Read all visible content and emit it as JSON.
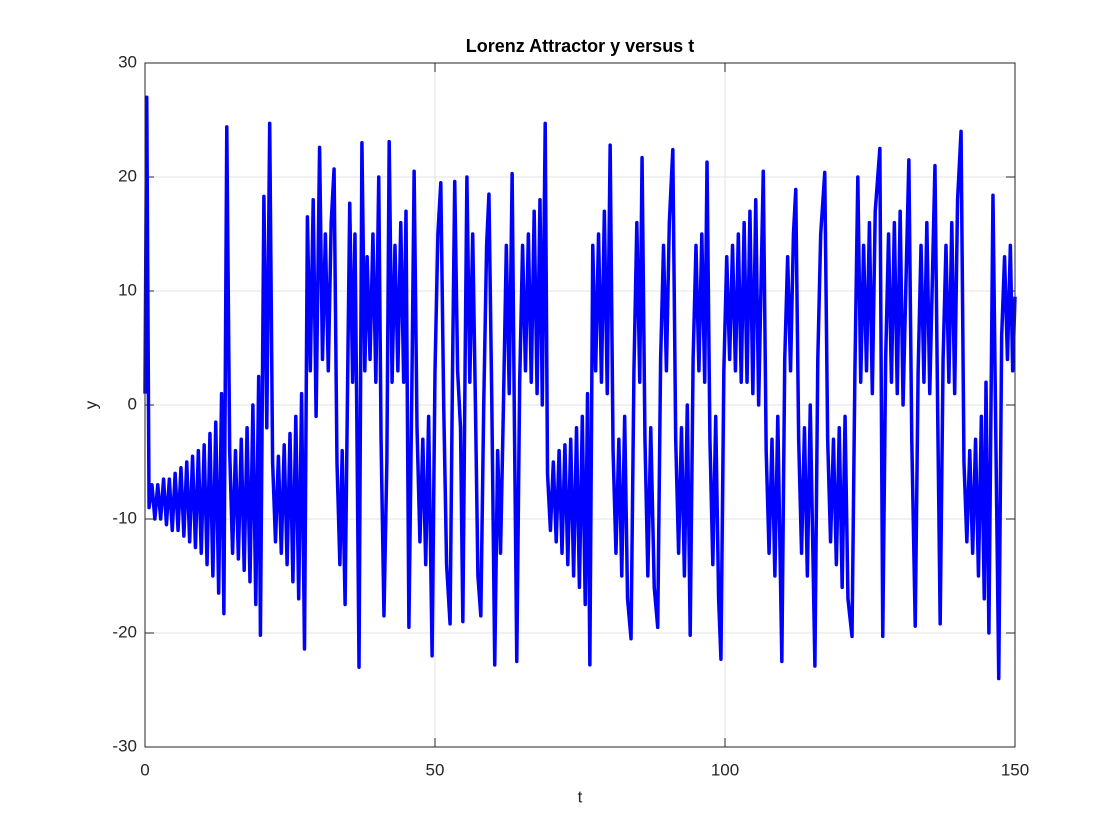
{
  "chart_data": {
    "type": "line",
    "title": "Lorenz Attractor y versus t",
    "xlabel": "t",
    "ylabel": "y",
    "color": "#0000ff",
    "grid": true,
    "xlim": [
      0,
      150
    ],
    "ylim": [
      -30,
      30
    ],
    "xticks": [
      0,
      50,
      100,
      150
    ],
    "yticks": [
      -30,
      -20,
      -10,
      0,
      10,
      20,
      30
    ],
    "x": [
      0,
      0.3,
      0.7,
      1.2,
      1.7,
      2.2,
      2.7,
      3.2,
      3.7,
      4.2,
      4.7,
      5.2,
      5.7,
      6.2,
      6.7,
      7.2,
      7.7,
      8.2,
      8.7,
      9.2,
      9.7,
      10.2,
      10.7,
      11.2,
      11.7,
      12.2,
      12.7,
      13.2,
      13.6,
      14.1,
      14.6,
      15.1,
      15.6,
      16.1,
      16.6,
      17.1,
      17.6,
      18.1,
      18.6,
      19.1,
      19.6,
      19.9,
      20.5,
      21.0,
      21.5,
      22.0,
      22.5,
      23.0,
      23.5,
      24.0,
      24.5,
      25.0,
      25.5,
      26.0,
      26.5,
      27.0,
      27.5,
      28.0,
      28.5,
      29.0,
      29.5,
      30.1,
      30.6,
      31.1,
      31.6,
      32.1,
      32.6,
      33.1,
      33.6,
      34.0,
      34.5,
      35.0,
      35.3,
      35.8,
      36.2,
      36.5,
      36.9,
      37.4,
      37.9,
      38.3,
      38.8,
      39.3,
      39.8,
      40.3,
      40.7,
      41.2,
      41.7,
      42.1,
      42.6,
      43.1,
      43.6,
      44.1,
      44.6,
      45.0,
      45.5,
      46.0,
      46.4,
      46.9,
      47.4,
      47.9,
      48.4,
      48.9,
      49.5,
      50.0,
      50.5,
      51.0,
      51.5,
      52.0,
      52.6,
      53.0,
      53.4,
      53.9,
      54.4,
      54.8,
      55.2,
      55.5,
      56.0,
      56.5,
      57.0,
      57.4,
      57.9,
      58.4,
      58.9,
      59.3,
      59.8,
      60.3,
      60.8,
      61.3,
      61.8,
      62.3,
      62.8,
      63.3,
      63.7,
      64.1,
      64.6,
      65.1,
      65.6,
      66.1,
      66.6,
      67.1,
      67.6,
      68.1,
      68.5,
      69.0,
      69.4,
      69.9,
      70.4,
      70.9,
      71.4,
      71.9,
      72.4,
      72.9,
      73.4,
      73.9,
      74.4,
      74.9,
      75.4,
      75.9,
      76.3,
      76.7,
      77.2,
      77.7,
      78.2,
      78.7,
      79.2,
      79.7,
      80.2,
      80.7,
      81.2,
      81.7,
      82.2,
      82.7,
      83.2,
      83.8,
      84.3,
      84.8,
      85.3,
      85.7,
      86.2,
      86.7,
      87.2,
      87.8,
      88.4,
      88.9,
      89.4,
      89.9,
      90.4,
      91.0,
      91.5,
      92.0,
      92.5,
      93.0,
      93.5,
      94.0,
      94.5,
      95.0,
      95.5,
      96.0,
      96.5,
      96.9,
      97.4,
      97.9,
      98.4,
      98.9,
      99.3,
      99.8,
      100.3,
      100.8,
      101.3,
      101.8,
      102.3,
      102.8,
      103.3,
      103.8,
      104.3,
      104.8,
      105.3,
      105.8,
      106.6,
      107.1,
      107.6,
      108.1,
      108.6,
      109.1,
      109.8,
      110.3,
      110.8,
      111.3,
      111.8,
      112.2,
      112.7,
      113.2,
      113.7,
      114.2,
      114.7,
      115.5,
      116.0,
      116.5,
      117.2,
      117.7,
      118.2,
      118.7,
      119.2,
      119.7,
      120.2,
      120.7,
      121.2,
      121.9,
      122.4,
      122.9,
      123.4,
      123.9,
      124.4,
      124.9,
      125.4,
      125.9,
      126.7,
      127.2,
      127.7,
      128.2,
      128.7,
      129.2,
      129.7,
      130.2,
      130.7,
      131.7,
      132.2,
      132.8,
      133.3,
      133.8,
      134.3,
      134.8,
      135.3,
      136.2,
      136.7,
      137.1,
      137.6,
      138.1,
      138.6,
      139.1,
      139.6,
      140.1,
      140.7,
      141.2,
      141.7,
      142.2,
      142.7,
      143.2,
      143.7,
      144.2,
      144.7,
      145.0,
      145.5,
      146.2,
      146.7,
      147.2,
      147.7,
      148.2,
      148.7,
      149.2,
      149.6,
      150
    ],
    "values": [
      1,
      27,
      -9,
      -7,
      -10,
      -7,
      -10,
      -6.5,
      -10.5,
      -6.5,
      -11,
      -6,
      -11,
      -5.5,
      -11.5,
      -5,
      -12,
      -4.5,
      -12.5,
      -4,
      -13,
      -3.5,
      -14,
      -2.5,
      -15,
      -1.5,
      -16.5,
      1,
      -18.3,
      24.4,
      -4,
      -13,
      -4,
      -13.5,
      -3,
      -14.5,
      -2,
      -15.5,
      0,
      -17.5,
      2.5,
      -20.2,
      18.3,
      -2,
      24.7,
      -5,
      -12,
      -4.5,
      -13,
      -3.5,
      -14,
      -2.5,
      -15.5,
      -1,
      -17,
      1,
      -21.4,
      16.5,
      3,
      18,
      -1,
      22.6,
      4,
      15,
      3,
      16,
      20.7,
      -5,
      -14,
      -4,
      -17.5,
      5,
      17.7,
      2,
      15,
      0,
      -23,
      23,
      3,
      13,
      4,
      15,
      2,
      20,
      -3,
      -18.5,
      -5,
      23.1,
      2,
      14,
      3,
      16,
      2,
      17,
      -19.5,
      1,
      20.5,
      -2,
      -12,
      -3,
      -14,
      -1,
      -22,
      3,
      15,
      19.5,
      0,
      -14,
      -19.2,
      2,
      19.6,
      3,
      -2,
      -19,
      4,
      20,
      2,
      15,
      -1,
      -15,
      -18.5,
      0,
      14,
      18.5,
      0,
      -22.8,
      -4,
      -13,
      0,
      14,
      1,
      20.3,
      -2,
      -22.5,
      2,
      14,
      3,
      15,
      2,
      17,
      1,
      18,
      0,
      24.7,
      -6,
      -11,
      -5,
      -12,
      -4,
      -13,
      -3.5,
      -14,
      -3,
      -15,
      -2,
      -16,
      -1,
      -17.5,
      1,
      -22.8,
      14,
      3,
      15,
      2,
      17,
      1,
      22.8,
      -4,
      -13,
      -3,
      -15,
      -1,
      -17,
      -20.5,
      3,
      16,
      2,
      21.7,
      -3,
      -15,
      -2,
      -16,
      -19.5,
      4,
      14,
      3,
      16,
      22.4,
      -3,
      -13,
      -2,
      -15,
      0,
      -20.2,
      4,
      14,
      3,
      15,
      2,
      21.3,
      -3,
      -14,
      -1,
      -17,
      -22.3,
      3,
      13,
      4,
      14,
      3,
      15,
      2,
      16,
      2,
      17,
      1,
      18,
      0,
      20.5,
      -4,
      -13,
      -3,
      -15,
      -1,
      -22.5,
      4,
      13,
      3,
      15,
      18.9,
      -3,
      -13,
      -2,
      -15,
      0,
      -22.9,
      4,
      15,
      20.4,
      -3,
      -12,
      -3,
      -14,
      -2,
      -16,
      -1,
      -17,
      -20.3,
      3,
      20,
      2,
      14,
      3,
      16,
      1,
      17,
      22.5,
      -20.3,
      4,
      15,
      2,
      16,
      1,
      17,
      0,
      21.5,
      -3,
      -19.4,
      3,
      14,
      2,
      16,
      1,
      21,
      -2,
      -19.2,
      4,
      14,
      2,
      16,
      1,
      18,
      24,
      -5,
      -12,
      -4,
      -13,
      -3,
      -15,
      -1,
      -17,
      2,
      -20,
      18.4,
      -3,
      -24,
      6,
      13,
      4,
      14,
      3,
      9.5
    ]
  }
}
